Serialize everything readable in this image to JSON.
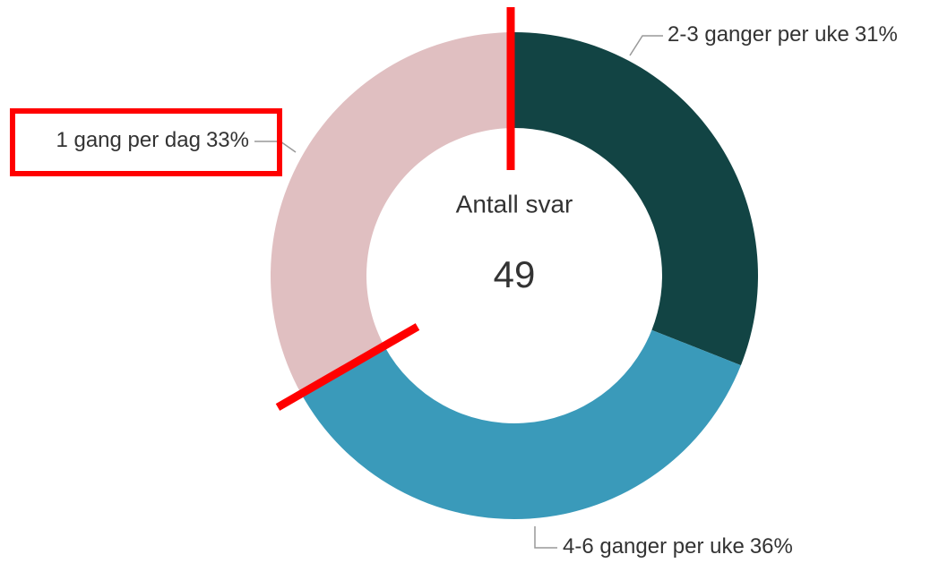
{
  "chart_data": {
    "type": "pie",
    "center_label": "Antall svar",
    "center_value": 49,
    "categories": [
      "2-3 ganger per uke",
      "4-6 ganger per uke",
      "1 gang per dag"
    ],
    "values": [
      31,
      36,
      33
    ],
    "value_labels": [
      "31%",
      "36%",
      "33%"
    ],
    "colors": [
      "#124444",
      "#3a9aba",
      "#e0bfc1"
    ]
  }
}
